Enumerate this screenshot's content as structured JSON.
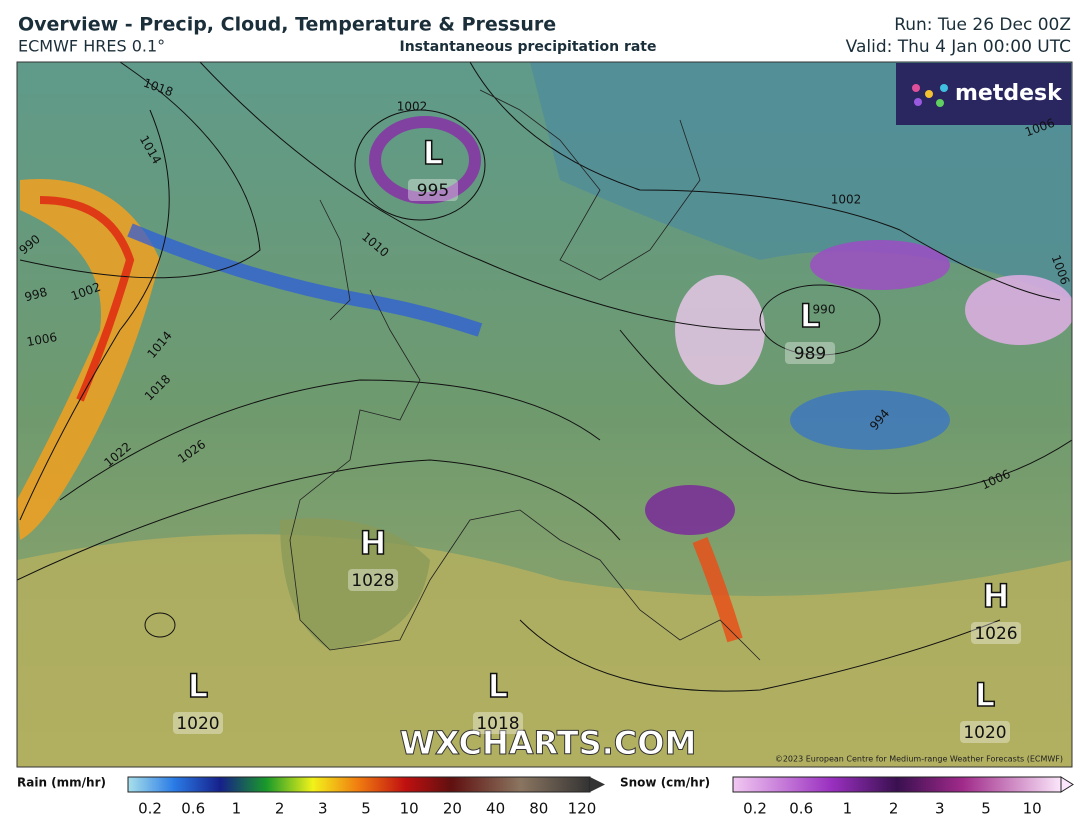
{
  "header": {
    "title": "Overview - Precip, Cloud, Temperature & Pressure",
    "model": "ECMWF HRES 0.1°",
    "subtitle": "Instantaneous precipitation rate",
    "run": "Run: Tue 26 Dec 00Z",
    "valid": "Valid: Thu 4 Jan 00:00 UTC"
  },
  "map": {
    "brand": "metdesk",
    "watermark": "WXCHARTS.COM",
    "copyright": "©2023 European Centre for Medium-range Weather Forecasts (ECMWF)",
    "centers": [
      {
        "type": "L",
        "pressure": 995
      },
      {
        "type": "L",
        "pressure": 989
      },
      {
        "type": "H",
        "pressure": 1028
      },
      {
        "type": "H",
        "pressure": 1026
      },
      {
        "type": "L",
        "pressure": 1020
      },
      {
        "type": "L",
        "pressure": 1018
      },
      {
        "type": "L",
        "pressure": 1020
      }
    ],
    "isobar_labels": [
      1018,
      1014,
      1002,
      990,
      998,
      1002,
      1006,
      1014,
      1018,
      1022,
      1026,
      1010,
      1002,
      990,
      994,
      1006,
      1006,
      1006
    ]
  },
  "legends": [
    {
      "title": "Rain (mm/hr)",
      "ticks": [
        0.2,
        0.6,
        1,
        2,
        3,
        5,
        10,
        20,
        40,
        80,
        120
      ]
    },
    {
      "title": "Snow (cm/hr)",
      "ticks": [
        0.2,
        0.6,
        1,
        2,
        3,
        5,
        10
      ]
    }
  ]
}
